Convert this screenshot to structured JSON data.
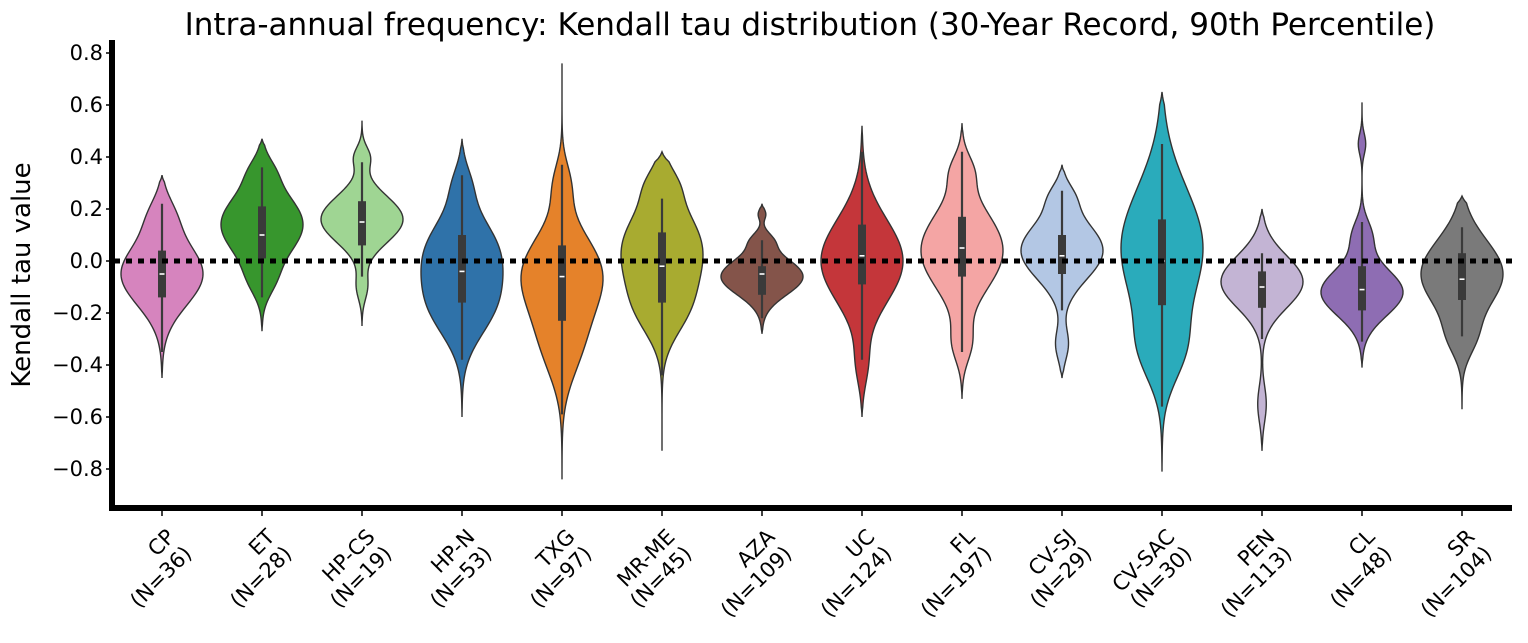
{
  "chart_data": {
    "type": "violin",
    "title": "Intra-annual frequency: Kendall tau distribution (30-Year Record, 90th Percentile)",
    "xlabel": "",
    "ylabel": "Kendall tau value",
    "ylim": [
      -0.95,
      0.85
    ],
    "yticks": [
      -0.8,
      -0.6,
      -0.4,
      -0.2,
      0.0,
      0.2,
      0.4,
      0.6,
      0.8
    ],
    "ytick_labels": [
      "−0.8",
      "−0.6",
      "−0.4",
      "−0.2",
      "0.0",
      "0.2",
      "0.4",
      "0.6",
      "0.8"
    ],
    "reference_line": {
      "y": 0.0,
      "style": "dotted",
      "color": "#000000"
    },
    "grid": false,
    "categories": [
      {
        "name": "CP",
        "n_label": "(N=36)",
        "color": "#d684be",
        "min": -0.35,
        "q1": -0.14,
        "median": -0.05,
        "q3": 0.04,
        "max": 0.22,
        "extent": [
          -0.45,
          0.33
        ],
        "modes": [
          [
            -0.05,
            0.46,
            0.12
          ],
          [
            0.18,
            0.1,
            0.07
          ]
        ]
      },
      {
        "name": "ET",
        "n_label": "(N=28)",
        "color": "#37962d",
        "min": -0.14,
        "q1": 0.01,
        "median": 0.1,
        "q3": 0.21,
        "max": 0.36,
        "extent": [
          -0.27,
          0.47
        ],
        "modes": [
          [
            0.14,
            0.55,
            0.12
          ],
          [
            -0.08,
            0.1,
            0.06
          ],
          [
            0.35,
            0.08,
            0.05
          ]
        ]
      },
      {
        "name": "HP-CS",
        "n_label": "(N=19)",
        "color": "#9fd593",
        "min": -0.06,
        "q1": 0.06,
        "median": 0.15,
        "q3": 0.23,
        "max": 0.38,
        "extent": [
          -0.25,
          0.54
        ],
        "modes": [
          [
            0.16,
            0.55,
            0.09
          ],
          [
            0.4,
            0.1,
            0.04
          ],
          [
            -0.1,
            0.07,
            0.05
          ]
        ]
      },
      {
        "name": "HP-N",
        "n_label": "(N=53)",
        "color": "#2f72a9",
        "min": -0.38,
        "q1": -0.16,
        "median": -0.04,
        "q3": 0.1,
        "max": 0.33,
        "extent": [
          -0.6,
          0.47
        ],
        "modes": [
          [
            0.04,
            0.52,
            0.13
          ],
          [
            -0.18,
            0.42,
            0.12
          ],
          [
            0.3,
            0.1,
            0.07
          ]
        ]
      },
      {
        "name": "TXG",
        "n_label": "(N=97)",
        "color": "#e5822a",
        "min": -0.59,
        "q1": -0.23,
        "median": -0.06,
        "q3": 0.06,
        "max": 0.37,
        "extent": [
          -0.84,
          0.76
        ],
        "modes": [
          [
            -0.05,
            0.55,
            0.15
          ],
          [
            -0.33,
            0.22,
            0.13
          ],
          [
            0.3,
            0.1,
            0.08
          ]
        ]
      },
      {
        "name": "MR-ME",
        "n_label": "(N=45)",
        "color": "#a8ab30",
        "min": -0.44,
        "q1": -0.16,
        "median": -0.02,
        "q3": 0.11,
        "max": 0.24,
        "extent": [
          -0.73,
          0.42
        ],
        "modes": [
          [
            0.04,
            0.55,
            0.16
          ],
          [
            -0.2,
            0.2,
            0.1
          ],
          [
            0.3,
            0.1,
            0.06
          ]
        ]
      },
      {
        "name": "AZA",
        "n_label": "(N=109)",
        "color": "#84544a",
        "min": -0.22,
        "q1": -0.13,
        "median": -0.05,
        "q3": -0.02,
        "max": 0.08,
        "extent": [
          -0.28,
          0.22
        ],
        "modes": [
          [
            -0.06,
            0.44,
            0.07
          ],
          [
            0.08,
            0.08,
            0.03
          ],
          [
            0.18,
            0.04,
            0.02
          ]
        ]
      },
      {
        "name": "UC",
        "n_label": "(N=124)",
        "color": "#c4363a",
        "min": -0.38,
        "q1": -0.09,
        "median": 0.02,
        "q3": 0.14,
        "max": 0.42,
        "extent": [
          -0.6,
          0.52
        ],
        "modes": [
          [
            0.0,
            0.5,
            0.16
          ],
          [
            -0.4,
            0.06,
            0.08
          ]
        ]
      },
      {
        "name": "FL",
        "n_label": "(N=197)",
        "color": "#f4a5a4",
        "min": -0.35,
        "q1": -0.06,
        "median": 0.05,
        "q3": 0.17,
        "max": 0.42,
        "extent": [
          -0.53,
          0.53
        ],
        "modes": [
          [
            0.04,
            0.5,
            0.15
          ],
          [
            -0.32,
            0.1,
            0.07
          ],
          [
            0.35,
            0.1,
            0.06
          ]
        ]
      },
      {
        "name": "CV-SJ",
        "n_label": "(N=29)",
        "color": "#b3c7e4",
        "min": -0.19,
        "q1": -0.05,
        "median": 0.02,
        "q3": 0.1,
        "max": 0.27,
        "extent": [
          -0.45,
          0.37
        ],
        "modes": [
          [
            0.04,
            0.52,
            0.11
          ],
          [
            -0.32,
            0.08,
            0.06
          ],
          [
            0.25,
            0.1,
            0.05
          ]
        ]
      },
      {
        "name": "CV-SAC",
        "n_label": "(N=30)",
        "color": "#2aabbb",
        "min": -0.56,
        "q1": -0.17,
        "median": 0.0,
        "q3": 0.16,
        "max": 0.45,
        "extent": [
          -0.81,
          0.65
        ],
        "modes": [
          [
            0.05,
            0.52,
            0.23
          ],
          [
            -0.35,
            0.2,
            0.12
          ]
        ]
      },
      {
        "name": "PEN",
        "n_label": "(N=113)",
        "color": "#c3b4d4",
        "min": -0.3,
        "q1": -0.18,
        "median": -0.1,
        "q3": -0.04,
        "max": 0.03,
        "extent": [
          -0.73,
          0.2
        ],
        "modes": [
          [
            -0.08,
            0.48,
            0.1
          ],
          [
            -0.55,
            0.05,
            0.07
          ]
        ]
      },
      {
        "name": "CL",
        "n_label": "(N=48)",
        "color": "#8e6db3",
        "min": -0.31,
        "q1": -0.19,
        "median": -0.11,
        "q3": -0.02,
        "max": 0.15,
        "extent": [
          -0.41,
          0.61
        ],
        "modes": [
          [
            -0.12,
            0.55,
            0.09
          ],
          [
            0.1,
            0.12,
            0.06
          ],
          [
            0.45,
            0.05,
            0.04
          ]
        ]
      },
      {
        "name": "SR",
        "n_label": "(N=104)",
        "color": "#7a7a7a",
        "min": -0.29,
        "q1": -0.15,
        "median": -0.07,
        "q3": 0.03,
        "max": 0.13,
        "extent": [
          -0.57,
          0.25
        ],
        "modes": [
          [
            -0.05,
            0.52,
            0.13
          ],
          [
            -0.3,
            0.12,
            0.07
          ]
        ]
      }
    ]
  }
}
